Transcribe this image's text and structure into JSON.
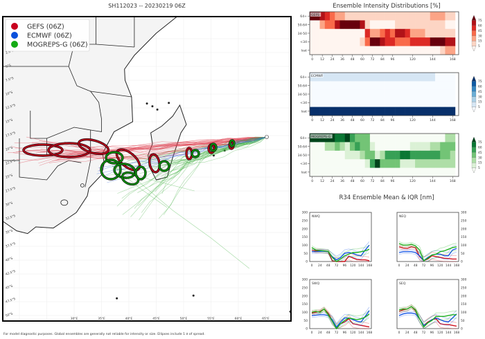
{
  "map": {
    "title": "SH112023 -- 20230219 06Z",
    "legend": [
      {
        "label": "GEFS (06Z)",
        "color": "#c8001e"
      },
      {
        "label": "ECMWF (06Z)",
        "color": "#0a50dc"
      },
      {
        "label": "MOGREPS-G (06Z)",
        "color": "#14aa14"
      }
    ],
    "lat_labels": [
      "2.5°S",
      "5°S",
      "7.5°S",
      "10°S",
      "12.5°S",
      "15°S",
      "17.5°S",
      "20°S",
      "22.5°S",
      "25°S",
      "27.5°S",
      "30°S",
      "32.5°S",
      "35°S",
      "37.5°S",
      "40°S",
      "42.5°S",
      "45°S",
      "47.5°S",
      "50°S"
    ],
    "lon_labels": [
      "30°E",
      "35°E",
      "40°E",
      "45°E",
      "50°E",
      "55°E",
      "60°E",
      "65°E"
    ],
    "footnote": "For model diagnostic purposes. Global ensembles are generally not reliable for intensity or size. Ellipses include 1 σ of spread."
  },
  "chart_data": [
    {
      "type": "heatmap",
      "title": "Ensemble Intensity Distributions [%]",
      "panel_label": "GEFS",
      "colormap": "reds",
      "rows": [
        "64+",
        "50-64",
        "34-50",
        "<34",
        "lost"
      ],
      "x_hours": [
        0,
        6,
        12,
        18,
        24,
        30,
        36,
        42,
        48,
        54,
        60,
        66,
        72,
        78,
        84,
        90,
        96,
        102,
        108,
        114,
        120,
        126,
        132,
        138,
        144,
        150,
        156,
        162,
        168
      ],
      "x_ticks": [
        0,
        12,
        24,
        36,
        48,
        60,
        72,
        84,
        96,
        120,
        144,
        168
      ],
      "colorbar_ticks": [
        5,
        15,
        30,
        45,
        60,
        75
      ],
      "values": [
        [
          75,
          75,
          60,
          45,
          30,
          20,
          20,
          10,
          10,
          10,
          5,
          5,
          5,
          5,
          5,
          5,
          5,
          5,
          5,
          5,
          5,
          5,
          5,
          5,
          15,
          15,
          15,
          5,
          5
        ],
        [
          3,
          3,
          20,
          35,
          35,
          60,
          80,
          80,
          80,
          80,
          60,
          10,
          3,
          3,
          3,
          3,
          3,
          12,
          12,
          12,
          12,
          12,
          12,
          12,
          5,
          5,
          10,
          3,
          3
        ],
        [
          2,
          2,
          2,
          2,
          2,
          2,
          2,
          2,
          2,
          2,
          2,
          50,
          25,
          25,
          35,
          50,
          40,
          65,
          65,
          50,
          25,
          25,
          25,
          12,
          12,
          12,
          5,
          12,
          12
        ],
        [
          2,
          2,
          2,
          2,
          2,
          2,
          2,
          2,
          2,
          2,
          8,
          35,
          85,
          85,
          60,
          45,
          45,
          30,
          30,
          30,
          55,
          55,
          55,
          55,
          80,
          80,
          80,
          70,
          70
        ],
        [
          3,
          3,
          3,
          3,
          3,
          3,
          3,
          3,
          3,
          3,
          3,
          3,
          3,
          3,
          3,
          3,
          3,
          3,
          3,
          3,
          3,
          3,
          3,
          3,
          3,
          3,
          10,
          25,
          25
        ]
      ]
    },
    {
      "type": "heatmap",
      "panel_label": "ECMWF",
      "colormap": "blues",
      "rows": [
        "64+",
        "50-64",
        "34-50",
        "<34",
        "lost"
      ],
      "x_hours": [
        0,
        6,
        12,
        18,
        24,
        30,
        36,
        42,
        48,
        54,
        60,
        66,
        72,
        78,
        84,
        90,
        96,
        102,
        108,
        114,
        120,
        126,
        132,
        138,
        144,
        150,
        156,
        162,
        168
      ],
      "x_ticks": [
        0,
        12,
        24,
        36,
        48,
        60,
        72,
        84,
        96,
        120,
        144,
        168
      ],
      "colorbar_ticks": [
        5,
        15,
        30,
        45,
        60,
        75
      ],
      "values": [
        [
          12,
          12,
          12,
          12,
          12,
          12,
          12,
          12,
          12,
          12,
          12,
          12,
          12,
          12,
          12,
          12,
          12,
          12,
          12,
          12,
          12,
          12,
          12,
          12,
          12,
          3,
          3,
          3,
          3
        ],
        [
          3,
          3,
          3,
          3,
          3,
          3,
          3,
          3,
          3,
          3,
          3,
          3,
          3,
          3,
          3,
          3,
          3,
          3,
          3,
          3,
          3,
          3,
          3,
          3,
          3,
          3,
          3,
          3,
          3
        ],
        [
          3,
          3,
          3,
          3,
          3,
          3,
          3,
          3,
          3,
          3,
          3,
          3,
          3,
          3,
          3,
          3,
          3,
          3,
          3,
          3,
          3,
          3,
          3,
          3,
          3,
          3,
          3,
          3,
          3
        ],
        [
          3,
          3,
          3,
          3,
          3,
          3,
          3,
          3,
          3,
          3,
          3,
          3,
          3,
          3,
          3,
          3,
          3,
          3,
          3,
          3,
          3,
          3,
          3,
          3,
          3,
          3,
          3,
          3,
          3
        ],
        [
          85,
          85,
          85,
          85,
          85,
          85,
          85,
          85,
          85,
          85,
          85,
          85,
          85,
          85,
          85,
          85,
          85,
          85,
          85,
          85,
          85,
          85,
          85,
          85,
          85,
          85,
          85,
          85,
          85
        ]
      ]
    },
    {
      "type": "heatmap",
      "panel_label": "MOGREPS-G",
      "colormap": "greens",
      "rows": [
        "64+",
        "50-64",
        "34-50",
        "<34",
        "lost"
      ],
      "x_hours": [
        0,
        6,
        12,
        18,
        24,
        30,
        36,
        42,
        48,
        54,
        60,
        66,
        72,
        78,
        84,
        90,
        96,
        102,
        108,
        114,
        120,
        126,
        132,
        138,
        144,
        150,
        156,
        162,
        168
      ],
      "x_ticks": [
        0,
        12,
        24,
        36,
        48,
        60,
        72,
        84,
        96,
        120,
        144,
        168
      ],
      "colorbar_ticks": [
        5,
        15,
        30,
        45,
        60,
        75
      ],
      "values": [
        [
          85,
          85,
          85,
          85,
          85,
          60,
          60,
          80,
          55,
          35,
          35,
          35,
          3,
          3,
          3,
          3,
          3,
          3,
          3,
          3,
          3,
          3,
          3,
          3,
          3,
          3,
          3,
          15,
          15
        ],
        [
          3,
          3,
          3,
          15,
          25,
          30,
          20,
          8,
          30,
          45,
          30,
          30,
          8,
          3,
          3,
          3,
          3,
          3,
          3,
          3,
          10,
          10,
          10,
          10,
          20,
          20,
          35,
          35,
          35
        ],
        [
          3,
          3,
          3,
          3,
          3,
          3,
          3,
          10,
          10,
          10,
          20,
          30,
          30,
          8,
          25,
          55,
          55,
          55,
          70,
          70,
          55,
          55,
          55,
          45,
          45,
          45,
          35,
          35,
          20
        ],
        [
          3,
          3,
          3,
          3,
          3,
          3,
          3,
          3,
          3,
          3,
          3,
          5,
          45,
          80,
          40,
          30,
          30,
          30,
          10,
          10,
          5,
          20,
          20,
          20,
          20,
          20,
          20,
          20,
          20
        ],
        [
          3,
          3,
          3,
          3,
          3,
          3,
          3,
          3,
          3,
          3,
          3,
          3,
          3,
          3,
          3,
          3,
          3,
          3,
          3,
          3,
          3,
          3,
          3,
          3,
          3,
          3,
          3,
          3,
          3
        ]
      ]
    },
    {
      "type": "line",
      "title": "R34 Ensemble Mean & IQR [nm]",
      "x": [
        0,
        12,
        24,
        36,
        48,
        60,
        72,
        84,
        96,
        108,
        120,
        132,
        144,
        156,
        168
      ],
      "x_ticks": [
        0,
        24,
        48,
        72,
        96,
        120,
        144,
        168
      ],
      "y_ticks": [
        0,
        50,
        100,
        150,
        200,
        250,
        300
      ],
      "ylim": [
        0,
        300
      ],
      "xlim": [
        0,
        168
      ],
      "panels": [
        {
          "label": "NWQ",
          "series": [
            {
              "model": "GEFS",
              "color": "#d0101e",
              "values": [
                70,
                65,
                65,
                62,
                60,
                5,
                0,
                0,
                0,
                32,
                22,
                12,
                10,
                10,
                5
              ]
            },
            {
              "model": "ECMWF",
              "color": "#1455e6",
              "values": [
                60,
                60,
                62,
                63,
                60,
                30,
                10,
                25,
                50,
                55,
                50,
                40,
                35,
                70,
                100
              ]
            },
            {
              "model": "MOGREPS-G",
              "color": "#1cb01c",
              "values": [
                85,
                70,
                68,
                65,
                62,
                25,
                0,
                15,
                35,
                45,
                55,
                55,
                60,
                65,
                75
              ]
            }
          ]
        },
        {
          "label": "NEQ",
          "series": [
            {
              "model": "GEFS",
              "color": "#d0101e",
              "values": [
                90,
                82,
                80,
                90,
                85,
                30,
                5,
                15,
                35,
                30,
                25,
                20,
                18,
                15,
                15
              ]
            },
            {
              "model": "ECMWF",
              "color": "#1455e6",
              "values": [
                55,
                60,
                60,
                60,
                55,
                35,
                5,
                25,
                40,
                45,
                45,
                35,
                35,
                70,
                80
              ]
            },
            {
              "model": "MOGREPS-G",
              "color": "#1cb01c",
              "values": [
                110,
                100,
                100,
                105,
                95,
                70,
                5,
                20,
                40,
                45,
                60,
                65,
                75,
                85,
                90
              ]
            }
          ]
        },
        {
          "label": "SWQ",
          "series": [
            {
              "model": "GEFS",
              "color": "#d0101e",
              "values": [
                95,
                100,
                105,
                120,
                95,
                50,
                5,
                30,
                40,
                60,
                30,
                25,
                20,
                15,
                10
              ]
            },
            {
              "model": "ECMWF",
              "color": "#1455e6",
              "values": [
                80,
                82,
                85,
                85,
                80,
                55,
                10,
                40,
                65,
                65,
                55,
                45,
                40,
                75,
                110
              ]
            },
            {
              "model": "MOGREPS-G",
              "color": "#1cb01c",
              "values": [
                100,
                105,
                100,
                120,
                85,
                45,
                0,
                30,
                50,
                65,
                60,
                55,
                60,
                70,
                90
              ]
            }
          ]
        },
        {
          "label": "SEQ",
          "series": [
            {
              "model": "GEFS",
              "color": "#d0101e",
              "values": [
                105,
                115,
                120,
                135,
                110,
                60,
                20,
                40,
                55,
                60,
                30,
                25,
                25,
                20,
                15
              ]
            },
            {
              "model": "ECMWF",
              "color": "#1455e6",
              "values": [
                80,
                90,
                95,
                95,
                90,
                60,
                20,
                35,
                55,
                65,
                55,
                45,
                40,
                65,
                90
              ]
            },
            {
              "model": "MOGREPS-G",
              "color": "#1cb01c",
              "values": [
                115,
                120,
                120,
                135,
                115,
                60,
                10,
                35,
                50,
                75,
                75,
                75,
                80,
                85,
                85
              ]
            }
          ]
        }
      ]
    }
  ]
}
